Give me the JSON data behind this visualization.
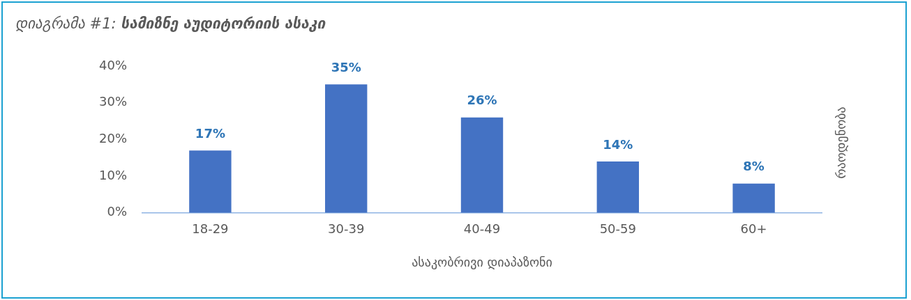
{
  "chart_data": {
    "type": "bar",
    "title": "დიაგრამა #1: სამიზნე აუდიტორიის ასაკი",
    "xlabel": "ასაკობრივი დიაპაზონი",
    "ylabel": "რაოდენობა",
    "categories": [
      "18-29",
      "30-39",
      "40-49",
      "50-59",
      "60+"
    ],
    "values": [
      17,
      35,
      26,
      14,
      8
    ],
    "value_labels": [
      "17%",
      "35%",
      "26%",
      "14%",
      "8%"
    ],
    "color": "#4472c4",
    "ylim": [
      0,
      40
    ],
    "yticks": [
      {
        "value": 0,
        "label": "0%"
      },
      {
        "value": 10,
        "label": "10%"
      },
      {
        "value": 20,
        "label": "20%"
      },
      {
        "value": 30,
        "label": "30%"
      },
      {
        "value": 40,
        "label": "40%"
      }
    ]
  }
}
